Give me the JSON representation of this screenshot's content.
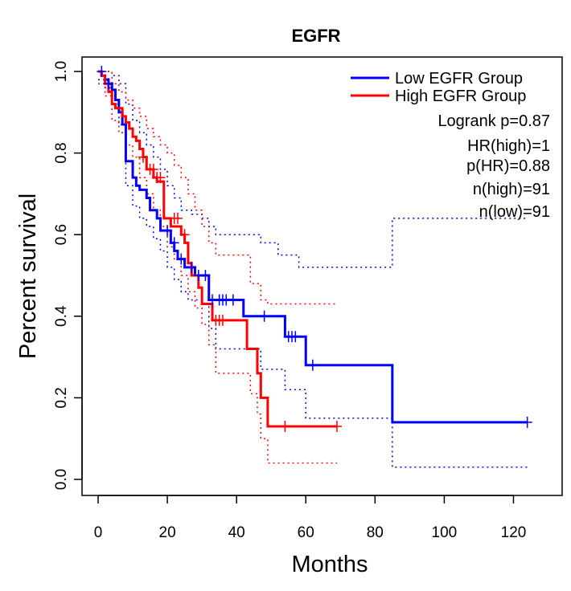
{
  "chart_data": {
    "type": "line",
    "title": "EGFR",
    "xlabel": "Months",
    "ylabel": "Percent survival",
    "xlim": [
      0,
      125
    ],
    "ylim": [
      0,
      1.0
    ],
    "x_ticks": [
      0,
      20,
      40,
      60,
      80,
      100,
      120
    ],
    "x_tick_labels": [
      "0",
      "20",
      "40",
      "60",
      "80",
      "100",
      "120"
    ],
    "y_ticks": [
      0.0,
      0.2,
      0.4,
      0.6,
      0.8,
      1.0
    ],
    "y_tick_labels": [
      "0.0",
      "0.2",
      "0.4",
      "0.6",
      "0.8",
      "1.0"
    ],
    "grid": false,
    "legend_position": "top-right",
    "stats": {
      "logrank": "Logrank p=0.87",
      "hr": "HR(high)=1",
      "p_hr": "p(HR)=0.88",
      "n_high": "n(high)=91",
      "n_low": "n(low)=91"
    },
    "series": [
      {
        "name": "Low EGFR Group",
        "color": "#0000ff",
        "steps": [
          [
            0,
            1.0
          ],
          [
            1,
            0.99
          ],
          [
            2,
            0.98
          ],
          [
            3,
            0.97
          ],
          [
            4,
            0.955
          ],
          [
            5,
            0.93
          ],
          [
            6,
            0.9
          ],
          [
            7,
            0.87
          ],
          [
            8,
            0.78
          ],
          [
            10,
            0.74
          ],
          [
            11,
            0.72
          ],
          [
            12,
            0.71
          ],
          [
            14,
            0.69
          ],
          [
            15,
            0.66
          ],
          [
            17,
            0.64
          ],
          [
            18,
            0.61
          ],
          [
            21,
            0.58
          ],
          [
            22,
            0.56
          ],
          [
            23,
            0.54
          ],
          [
            25,
            0.52
          ],
          [
            28,
            0.5
          ],
          [
            32,
            0.44
          ],
          [
            42,
            0.4
          ],
          [
            54,
            0.35
          ],
          [
            60,
            0.28
          ],
          [
            85,
            0.14
          ],
          [
            124,
            0.14
          ]
        ],
        "upper": [
          [
            0,
            1.0
          ],
          [
            2,
            1.0
          ],
          [
            4,
            0.99
          ],
          [
            6,
            0.97
          ],
          [
            8,
            0.92
          ],
          [
            10,
            0.88
          ],
          [
            12,
            0.85
          ],
          [
            14,
            0.82
          ],
          [
            16,
            0.79
          ],
          [
            18,
            0.76
          ],
          [
            20,
            0.72
          ],
          [
            22,
            0.69
          ],
          [
            24,
            0.66
          ],
          [
            27,
            0.65
          ],
          [
            30,
            0.64
          ],
          [
            32,
            0.62
          ],
          [
            34,
            0.6
          ],
          [
            47,
            0.58
          ],
          [
            52,
            0.55
          ],
          [
            58,
            0.52
          ],
          [
            85,
            0.64
          ],
          [
            124,
            0.64
          ]
        ],
        "lower": [
          [
            0,
            0.98
          ],
          [
            2,
            0.96
          ],
          [
            4,
            0.92
          ],
          [
            6,
            0.87
          ],
          [
            8,
            0.72
          ],
          [
            10,
            0.67
          ],
          [
            12,
            0.64
          ],
          [
            14,
            0.62
          ],
          [
            16,
            0.59
          ],
          [
            18,
            0.56
          ],
          [
            20,
            0.52
          ],
          [
            22,
            0.49
          ],
          [
            24,
            0.46
          ],
          [
            26,
            0.44
          ],
          [
            30,
            0.43
          ],
          [
            32,
            0.37
          ],
          [
            34,
            0.32
          ],
          [
            47,
            0.27
          ],
          [
            54,
            0.22
          ],
          [
            60,
            0.15
          ],
          [
            85,
            0.03
          ],
          [
            124,
            0.03
          ]
        ],
        "censors": [
          [
            1,
            1.0
          ],
          [
            3,
            0.97
          ],
          [
            20,
            0.61
          ],
          [
            22,
            0.58
          ],
          [
            24,
            0.54
          ],
          [
            27,
            0.52
          ],
          [
            29,
            0.5
          ],
          [
            31,
            0.5
          ],
          [
            33,
            0.44
          ],
          [
            35,
            0.44
          ],
          [
            36,
            0.44
          ],
          [
            37,
            0.44
          ],
          [
            39,
            0.44
          ],
          [
            48,
            0.4
          ],
          [
            55,
            0.35
          ],
          [
            56,
            0.35
          ],
          [
            57,
            0.35
          ],
          [
            62,
            0.28
          ],
          [
            124,
            0.14
          ]
        ]
      },
      {
        "name": "High EGFR Group",
        "color": "#ff0000",
        "steps": [
          [
            0,
            1.0
          ],
          [
            1,
            0.99
          ],
          [
            2,
            0.97
          ],
          [
            3,
            0.95
          ],
          [
            4,
            0.92
          ],
          [
            5,
            0.91
          ],
          [
            7,
            0.89
          ],
          [
            8,
            0.875
          ],
          [
            9,
            0.86
          ],
          [
            10,
            0.84
          ],
          [
            11,
            0.83
          ],
          [
            12,
            0.81
          ],
          [
            13,
            0.79
          ],
          [
            14,
            0.76
          ],
          [
            16,
            0.74
          ],
          [
            17,
            0.73
          ],
          [
            19,
            0.64
          ],
          [
            21,
            0.62
          ],
          [
            24,
            0.6
          ],
          [
            25,
            0.58
          ],
          [
            26,
            0.53
          ],
          [
            27,
            0.5
          ],
          [
            29,
            0.47
          ],
          [
            30,
            0.43
          ],
          [
            33,
            0.39
          ],
          [
            43,
            0.32
          ],
          [
            46,
            0.26
          ],
          [
            47,
            0.2
          ],
          [
            49,
            0.13
          ],
          [
            69,
            0.13
          ]
        ],
        "upper": [
          [
            0,
            1.0
          ],
          [
            2,
            1.0
          ],
          [
            4,
            0.97
          ],
          [
            6,
            0.95
          ],
          [
            8,
            0.93
          ],
          [
            10,
            0.91
          ],
          [
            12,
            0.89
          ],
          [
            14,
            0.86
          ],
          [
            16,
            0.84
          ],
          [
            18,
            0.82
          ],
          [
            20,
            0.8
          ],
          [
            22,
            0.77
          ],
          [
            24,
            0.74
          ],
          [
            26,
            0.7
          ],
          [
            28,
            0.66
          ],
          [
            30,
            0.62
          ],
          [
            32,
            0.58
          ],
          [
            34,
            0.55
          ],
          [
            44,
            0.48
          ],
          [
            47,
            0.44
          ],
          [
            49,
            0.43
          ],
          [
            69,
            0.43
          ]
        ],
        "lower": [
          [
            0,
            0.97
          ],
          [
            2,
            0.94
          ],
          [
            4,
            0.88
          ],
          [
            6,
            0.85
          ],
          [
            8,
            0.82
          ],
          [
            10,
            0.79
          ],
          [
            12,
            0.74
          ],
          [
            14,
            0.7
          ],
          [
            16,
            0.66
          ],
          [
            18,
            0.62
          ],
          [
            20,
            0.57
          ],
          [
            22,
            0.54
          ],
          [
            24,
            0.5
          ],
          [
            26,
            0.46
          ],
          [
            28,
            0.42
          ],
          [
            30,
            0.38
          ],
          [
            32,
            0.33
          ],
          [
            34,
            0.26
          ],
          [
            44,
            0.21
          ],
          [
            46,
            0.16
          ],
          [
            47,
            0.1
          ],
          [
            49,
            0.04
          ],
          [
            69,
            0.04
          ]
        ],
        "censors": [
          [
            13,
            0.79
          ],
          [
            15,
            0.76
          ],
          [
            16,
            0.76
          ],
          [
            17,
            0.74
          ],
          [
            18,
            0.74
          ],
          [
            22,
            0.64
          ],
          [
            23,
            0.64
          ],
          [
            25,
            0.6
          ],
          [
            34,
            0.39
          ],
          [
            35,
            0.39
          ],
          [
            36,
            0.39
          ],
          [
            54,
            0.13
          ],
          [
            69,
            0.13
          ]
        ]
      }
    ]
  }
}
